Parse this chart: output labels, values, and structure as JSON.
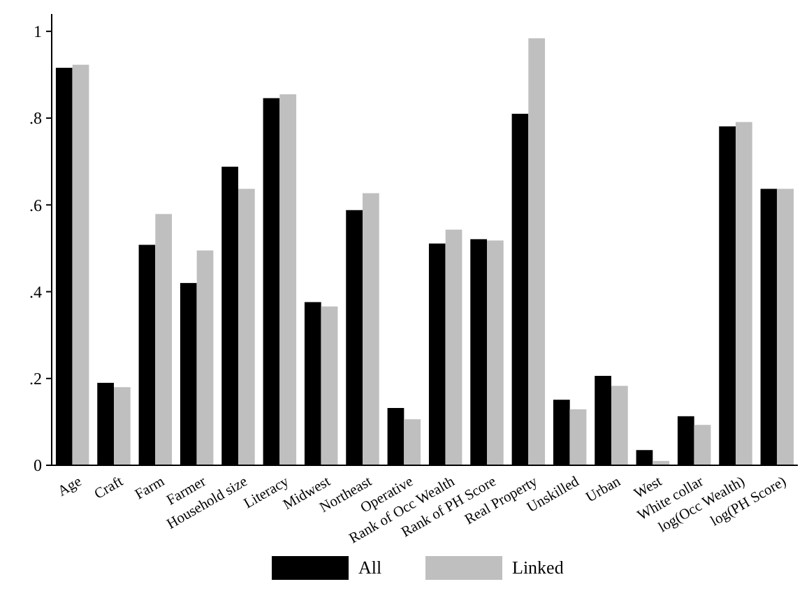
{
  "chart_data": {
    "type": "bar",
    "categories": [
      "Age",
      "Craft",
      "Farm",
      "Farmer",
      "Household size",
      "Literacy",
      "Midwest",
      "Northeast",
      "Operative",
      "Rank of Occ Wealth",
      "Rank of PH Score",
      "Real Property",
      "Unskilled",
      "Urban",
      "West",
      "White collar",
      "log(Occ Wealth)",
      "log(PH Score)"
    ],
    "series": [
      {
        "name": "All",
        "color": "#000000",
        "values": [
          0.916,
          0.19,
          0.508,
          0.42,
          0.688,
          0.846,
          0.376,
          0.588,
          0.132,
          0.511,
          0.521,
          0.81,
          0.151,
          0.206,
          0.035,
          0.113,
          0.781,
          0.637
        ]
      },
      {
        "name": "Linked",
        "color": "#bfbfbf",
        "values": [
          0.923,
          0.18,
          0.579,
          0.495,
          0.637,
          0.855,
          0.366,
          0.627,
          0.106,
          0.543,
          0.518,
          0.984,
          0.129,
          0.183,
          0.01,
          0.093,
          0.791,
          0.637
        ]
      }
    ],
    "ylim": [
      0,
      1.04
    ],
    "yticks": [
      {
        "value": 0,
        "label": "0"
      },
      {
        "value": 0.2,
        "label": ".2"
      },
      {
        "value": 0.4,
        "label": ".4"
      },
      {
        "value": 0.6,
        "label": ".6"
      },
      {
        "value": 0.8,
        "label": ".8"
      },
      {
        "value": 1,
        "label": "1"
      }
    ],
    "grid": false,
    "legend": "bottom"
  }
}
